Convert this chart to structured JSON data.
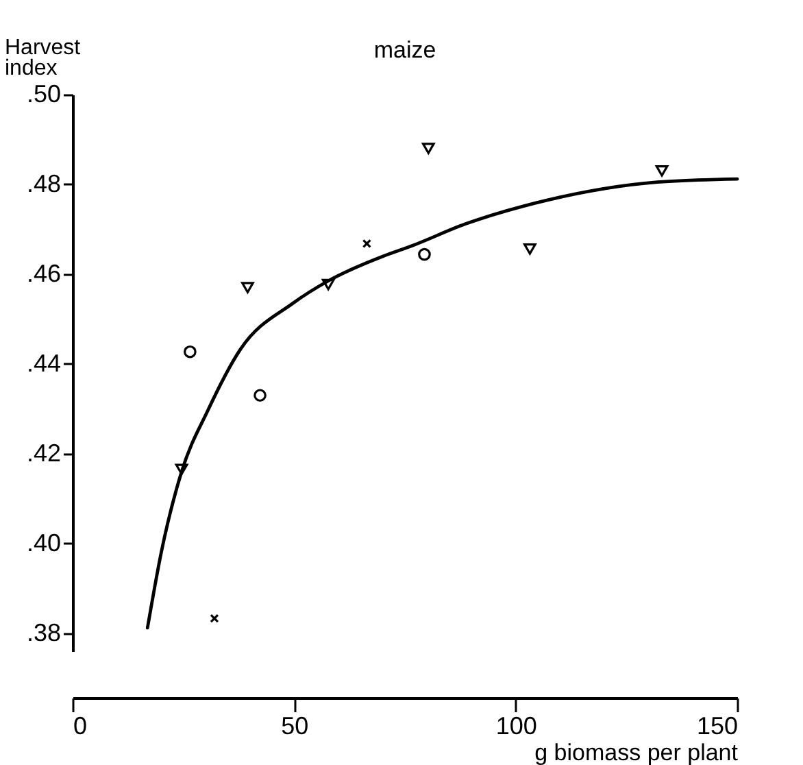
{
  "chart_data": {
    "type": "scatter",
    "title": "maize",
    "xlabel": "g biomass per plant",
    "ylabel": "Harvest index",
    "xlim": [
      0,
      150
    ],
    "xticks": [
      0,
      50,
      100,
      150
    ],
    "ylim": [
      0.376,
      0.5
    ],
    "yticks": [
      {
        "value": 0.38,
        "label": ".38"
      },
      {
        "value": 0.4,
        "label": ".40"
      },
      {
        "value": 0.42,
        "label": ".42"
      },
      {
        "value": 0.44,
        "label": ".44"
      },
      {
        "value": 0.46,
        "label": ".46"
      },
      {
        "value": 0.48,
        "label": ".48"
      },
      {
        "value": 0.5,
        "label": ".50"
      }
    ],
    "grid": false,
    "series": [
      {
        "marker": "triangle",
        "color": "#000000",
        "x": [
          24.6,
          39.5,
          57.7,
          80.3,
          103.2,
          133
        ],
        "values": [
          0.4165,
          0.457,
          0.4577,
          0.488,
          0.4656,
          0.483
        ]
      },
      {
        "marker": "circle",
        "color": "#000000",
        "x": [
          26.5,
          42.3,
          79.4
        ],
        "values": [
          0.4427,
          0.433,
          0.4644
        ]
      },
      {
        "marker": "cross",
        "color": "#000000",
        "x": [
          32,
          66.4
        ],
        "values": [
          0.3833,
          0.4668
        ]
      },
      {
        "type": "line",
        "marker": "none",
        "line_style": "solid",
        "color": "#000000",
        "x": [
          16.9,
          20,
          24.6,
          30.5,
          37.9,
          49.7,
          57.7,
          70.1,
          76.3,
          88.7,
          107.2,
          132,
          150
        ],
        "values": [
          0.3812,
          0.398,
          0.416,
          0.4296,
          0.4433,
          0.4535,
          0.4585,
          0.464,
          0.4662,
          0.4712,
          0.4765,
          0.4805,
          0.4812
        ]
      }
    ]
  }
}
